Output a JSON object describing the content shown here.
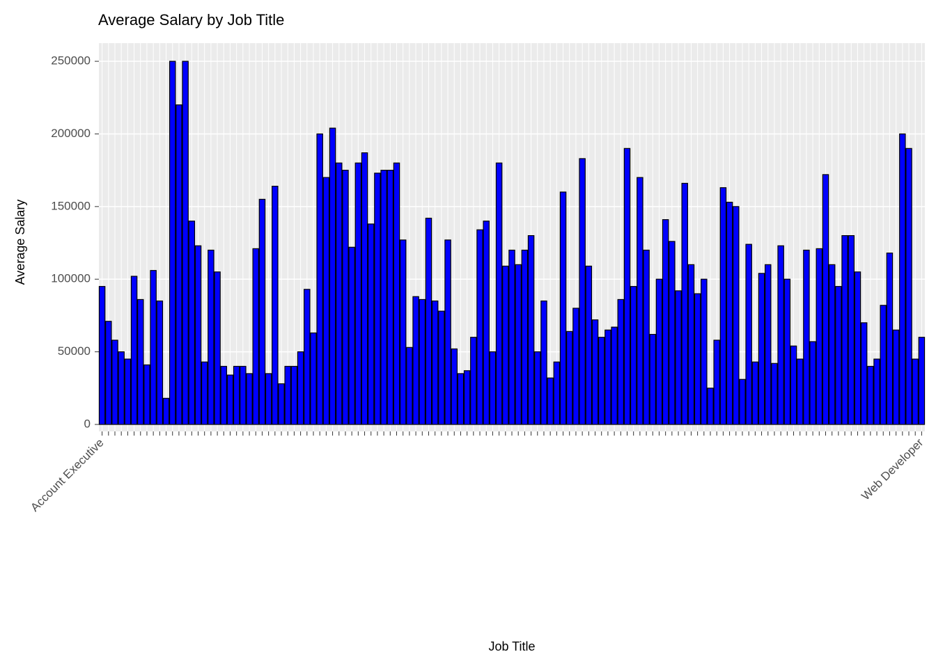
{
  "chart_data": {
    "type": "bar",
    "title": "Average Salary by Job Title",
    "x_label": "Job Title",
    "y_label": "Average Salary",
    "categories": [
      "Account Executive",
      null,
      null,
      null,
      null,
      null,
      null,
      null,
      null,
      null,
      null,
      null,
      null,
      null,
      null,
      null,
      null,
      null,
      null,
      null,
      null,
      null,
      null,
      null,
      null,
      null,
      null,
      null,
      null,
      null,
      null,
      null,
      null,
      null,
      null,
      null,
      null,
      null,
      null,
      null,
      null,
      null,
      null,
      null,
      null,
      null,
      null,
      null,
      null,
      null,
      null,
      null,
      null,
      null,
      null,
      null,
      null,
      null,
      null,
      null,
      null,
      null,
      null,
      null,
      null,
      null,
      null,
      null,
      null,
      null,
      null,
      null,
      null,
      null,
      null,
      null,
      null,
      null,
      null,
      null,
      null,
      null,
      null,
      null,
      null,
      null,
      null,
      null,
      null,
      null,
      null,
      null,
      null,
      null,
      null,
      null,
      null,
      null,
      null,
      null,
      null,
      null,
      null,
      null,
      null,
      null,
      null,
      null,
      null,
      null,
      null,
      null,
      null,
      null,
      null,
      null,
      null,
      null,
      null,
      null,
      null,
      null,
      null,
      null,
      null,
      null,
      null,
      null,
      "Web Developer"
    ],
    "values": [
      95000,
      71000,
      58000,
      50000,
      45000,
      102000,
      86000,
      41000,
      106000,
      85000,
      18000,
      250000,
      220000,
      250000,
      140000,
      123000,
      43000,
      120000,
      105000,
      40000,
      34000,
      40000,
      40000,
      35000,
      121000,
      155000,
      35000,
      164000,
      28000,
      40000,
      40000,
      50000,
      93000,
      63000,
      200000,
      170000,
      204000,
      180000,
      175000,
      122000,
      180000,
      187000,
      138000,
      173000,
      175000,
      175000,
      180000,
      127000,
      53000,
      88000,
      86000,
      142000,
      85000,
      78000,
      127000,
      52000,
      35000,
      37000,
      60000,
      134000,
      140000,
      50000,
      180000,
      109000,
      120000,
      110000,
      120000,
      130000,
      50000,
      85000,
      32000,
      43000,
      160000,
      64000,
      80000,
      183000,
      109000,
      72000,
      60000,
      65000,
      67000,
      86000,
      190000,
      95000,
      170000,
      120000,
      62000,
      100000,
      141000,
      126000,
      92000,
      166000,
      110000,
      90000,
      100000,
      25000,
      58000,
      163000,
      153000,
      150000,
      31000,
      124000,
      43000,
      104000,
      110000,
      42000,
      123000,
      100000,
      54000,
      45000,
      120000,
      57000,
      121000,
      172000,
      110000,
      95000,
      130000,
      130000,
      105000,
      70000,
      40000,
      45000,
      82000,
      118000,
      65000,
      200000,
      190000,
      45000,
      60000
    ],
    "color": "#0000ff",
    "ylim": [
      -4800,
      262500
    ],
    "yticks": [
      0,
      50000,
      100000,
      150000,
      200000,
      250000
    ],
    "grid": true
  }
}
